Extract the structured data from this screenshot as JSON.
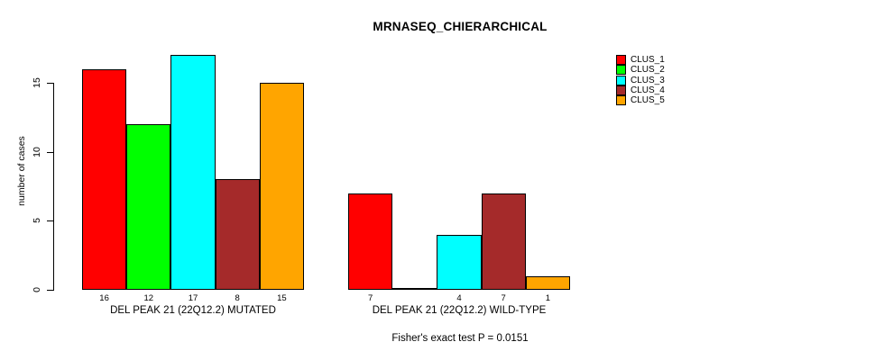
{
  "chart_data": {
    "type": "bar",
    "title": "MRNASEQ_CHIERARCHICAL",
    "ylabel": "number of cases",
    "yticks": [
      0,
      5,
      10,
      15
    ],
    "ylim": [
      0,
      17.6
    ],
    "grid": false,
    "legend_position": "top-right",
    "categories": [
      "DEL PEAK 21 (22Q12.2) MUTATED",
      "DEL PEAK 21 (22Q12.2) WILD-TYPE"
    ],
    "series": [
      {
        "name": "CLUS_1",
        "color": "#FF0000",
        "values": [
          16,
          7
        ]
      },
      {
        "name": "CLUS_2",
        "color": "#00FF00",
        "values": [
          12,
          0
        ]
      },
      {
        "name": "CLUS_3",
        "color": "#00FFFF",
        "values": [
          17,
          4
        ]
      },
      {
        "name": "CLUS_4",
        "color": "#A52A2A",
        "values": [
          8,
          7
        ]
      },
      {
        "name": "CLUS_5",
        "color": "#FFA500",
        "values": [
          15,
          1
        ]
      }
    ],
    "bar_value_labels": [
      [
        "16",
        "12",
        "17",
        "8",
        "15"
      ],
      [
        "7",
        "",
        "4",
        "7",
        "1"
      ]
    ],
    "annotation": "Fisher's exact test P = 0.0151"
  }
}
